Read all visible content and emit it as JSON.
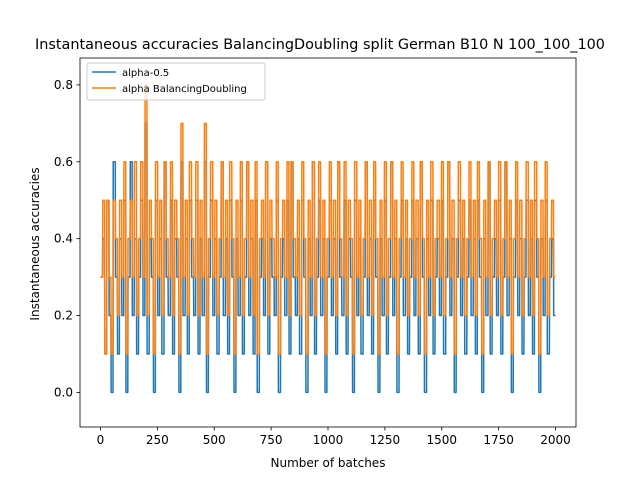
{
  "chart_data": {
    "type": "line",
    "title": "Instantaneous accuracies BalancingDoubling split German B10 N 100_100_100",
    "xlabel": "Number of batches",
    "ylabel": "Instantaneous accuracies",
    "xlim": [
      -90,
      2090
    ],
    "ylim": [
      -0.09,
      0.87
    ],
    "xticks": [
      0,
      250,
      500,
      750,
      1000,
      1250,
      1500,
      1750,
      2000
    ],
    "yticks": [
      0.0,
      0.2,
      0.4,
      0.6,
      0.8
    ],
    "ytick_labels": [
      "0.0",
      "0.2",
      "0.4",
      "0.6",
      "0.8"
    ],
    "grid": false,
    "legend_position": "top-left",
    "series_summary": {
      "n_points": 2001,
      "x_range": [
        0,
        2000
      ],
      "value_range": [
        0.0,
        0.8
      ],
      "typical_range": [
        0.1,
        0.6
      ]
    },
    "series": [
      {
        "name": "alpha-0.5",
        "color": "#1f77b4",
        "values": [
          0.3,
          0.4,
          0.1,
          0.5,
          0.2,
          0.0,
          0.6,
          0.3,
          0.1,
          0.4,
          0.2,
          0.5,
          0.0,
          0.3,
          0.6,
          0.2,
          0.4,
          0.1,
          0.3,
          0.5,
          0.2,
          0.7,
          0.1,
          0.4,
          0.3,
          0.0,
          0.5,
          0.2,
          0.4,
          0.1,
          0.6,
          0.3,
          0.2,
          0.5,
          0.1,
          0.4,
          0.3,
          0.0,
          0.6,
          0.2,
          0.4,
          0.1,
          0.5,
          0.3,
          0.2,
          0.5,
          0.1,
          0.4,
          0.2,
          0.6,
          0.0,
          0.3,
          0.5,
          0.2,
          0.4,
          0.1,
          0.3,
          0.6,
          0.2,
          0.4,
          0.1,
          0.5,
          0.3,
          0.0,
          0.4,
          0.2,
          0.5,
          0.1,
          0.3,
          0.6,
          0.2,
          0.4,
          0.1,
          0.5,
          0.0,
          0.3,
          0.4,
          0.2,
          0.6,
          0.1,
          0.4,
          0.3,
          0.2,
          0.5,
          0.0,
          0.3,
          0.4,
          0.2,
          0.5,
          0.1,
          0.6,
          0.3,
          0.2,
          0.4,
          0.1,
          0.5,
          0.3,
          0.0,
          0.4,
          0.2,
          0.6,
          0.1,
          0.3,
          0.5,
          0.2,
          0.4,
          0.0,
          0.3,
          0.5,
          0.2,
          0.4,
          0.1,
          0.6,
          0.3,
          0.2,
          0.5,
          0.1,
          0.4,
          0.3,
          0.0,
          0.5,
          0.2,
          0.4,
          0.1,
          0.3,
          0.6,
          0.2,
          0.4,
          0.1,
          0.5,
          0.3,
          0.0,
          0.4,
          0.2,
          0.5,
          0.1,
          0.3,
          0.6,
          0.2,
          0.4,
          0.0,
          0.3,
          0.5,
          0.2,
          0.4,
          0.1,
          0.3,
          0.5,
          0.2,
          0.4,
          0.1,
          0.6,
          0.3,
          0.0,
          0.4,
          0.2,
          0.5,
          0.1,
          0.3,
          0.4,
          0.2,
          0.5,
          0.1,
          0.3,
          0.6,
          0.2,
          0.4,
          0.0,
          0.3,
          0.5,
          0.2,
          0.4,
          0.1,
          0.3,
          0.5,
          0.2,
          0.4,
          0.1,
          0.5,
          0.3,
          0.0,
          0.4,
          0.2,
          0.6,
          0.1,
          0.3,
          0.4,
          0.2,
          0.5,
          0.1,
          0.3,
          0.6,
          0.2,
          0.4,
          0.0,
          0.3,
          0.5,
          0.2,
          0.4,
          0.1,
          0.3,
          0.5,
          0.2,
          0.4,
          0.1,
          0.5,
          0.3,
          0.0,
          0.4,
          0.2,
          0.5,
          0.1,
          0.3,
          0.4,
          0.2
        ]
      },
      {
        "name": "alpha BalancingDoubling",
        "color": "#ff7f0e",
        "values": [
          0.3,
          0.5,
          0.1,
          0.5,
          0.3,
          0.1,
          0.5,
          0.4,
          0.2,
          0.5,
          0.3,
          0.6,
          0.1,
          0.4,
          0.5,
          0.3,
          0.6,
          0.2,
          0.4,
          0.6,
          0.3,
          0.8,
          0.2,
          0.5,
          0.4,
          0.1,
          0.6,
          0.3,
          0.5,
          0.2,
          0.6,
          0.4,
          0.3,
          0.6,
          0.2,
          0.5,
          0.4,
          0.1,
          0.7,
          0.3,
          0.5,
          0.2,
          0.6,
          0.4,
          0.3,
          0.6,
          0.2,
          0.5,
          0.3,
          0.7,
          0.1,
          0.4,
          0.6,
          0.3,
          0.5,
          0.2,
          0.4,
          0.6,
          0.3,
          0.5,
          0.2,
          0.6,
          0.4,
          0.1,
          0.5,
          0.3,
          0.6,
          0.2,
          0.4,
          0.6,
          0.3,
          0.5,
          0.2,
          0.6,
          0.1,
          0.4,
          0.5,
          0.3,
          0.6,
          0.2,
          0.5,
          0.4,
          0.3,
          0.6,
          0.1,
          0.4,
          0.5,
          0.3,
          0.6,
          0.2,
          0.6,
          0.4,
          0.3,
          0.5,
          0.2,
          0.6,
          0.4,
          0.1,
          0.5,
          0.3,
          0.6,
          0.2,
          0.4,
          0.6,
          0.3,
          0.5,
          0.1,
          0.4,
          0.6,
          0.3,
          0.5,
          0.2,
          0.6,
          0.4,
          0.3,
          0.6,
          0.2,
          0.5,
          0.4,
          0.1,
          0.6,
          0.3,
          0.5,
          0.2,
          0.4,
          0.6,
          0.3,
          0.5,
          0.2,
          0.6,
          0.4,
          0.1,
          0.5,
          0.3,
          0.6,
          0.2,
          0.4,
          0.6,
          0.3,
          0.5,
          0.1,
          0.4,
          0.6,
          0.3,
          0.5,
          0.2,
          0.4,
          0.6,
          0.3,
          0.5,
          0.2,
          0.6,
          0.4,
          0.1,
          0.5,
          0.3,
          0.6,
          0.2,
          0.4,
          0.5,
          0.3,
          0.6,
          0.2,
          0.4,
          0.6,
          0.3,
          0.5,
          0.1,
          0.4,
          0.6,
          0.3,
          0.5,
          0.2,
          0.4,
          0.6,
          0.3,
          0.5,
          0.2,
          0.6,
          0.4,
          0.1,
          0.5,
          0.3,
          0.6,
          0.2,
          0.4,
          0.5,
          0.3,
          0.6,
          0.2,
          0.4,
          0.6,
          0.3,
          0.5,
          0.1,
          0.4,
          0.6,
          0.3,
          0.5,
          0.2,
          0.4,
          0.6,
          0.3,
          0.5,
          0.2,
          0.6,
          0.4,
          0.1,
          0.5,
          0.3,
          0.6,
          0.2,
          0.4,
          0.5,
          0.3
        ]
      }
    ]
  }
}
